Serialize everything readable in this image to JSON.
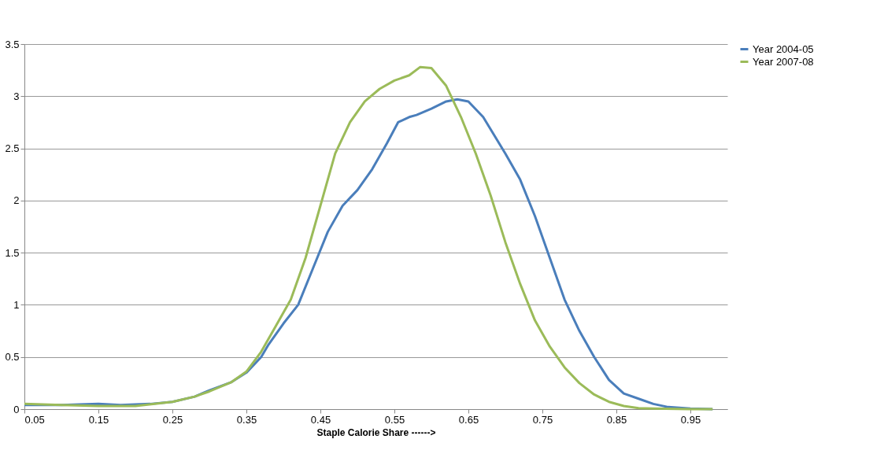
{
  "chart_data": {
    "type": "line",
    "xlabel": "Staple Calorie Share ------>",
    "xlim": [
      0.05,
      1.0
    ],
    "xticks": [
      0.05,
      0.15,
      0.25,
      0.35,
      0.45,
      0.55,
      0.65,
      0.75,
      0.85,
      0.95
    ],
    "ylim": [
      0,
      3.5
    ],
    "yticks": [
      0,
      0.5,
      1,
      1.5,
      2,
      2.5,
      3,
      3.5
    ],
    "grid": "y",
    "legend": "right",
    "marker": "none",
    "line_style": "solid",
    "x": [
      0.05,
      0.1,
      0.15,
      0.18,
      0.22,
      0.25,
      0.28,
      0.3,
      0.33,
      0.35,
      0.37,
      0.38,
      0.4,
      0.42,
      0.44,
      0.46,
      0.48,
      0.5,
      0.52,
      0.54,
      0.555,
      0.57,
      0.58,
      0.6,
      0.62,
      0.635,
      0.65,
      0.67,
      0.7,
      0.72,
      0.74,
      0.76,
      0.78,
      0.8,
      0.82,
      0.84,
      0.86,
      0.88,
      0.9,
      0.92,
      0.95,
      0.98
    ],
    "series": [
      {
        "name": "Year 2004-05",
        "color": "#4a7ebb",
        "values": [
          0.04,
          0.04,
          0.05,
          0.04,
          0.05,
          0.07,
          0.12,
          0.18,
          0.26,
          0.35,
          0.5,
          0.62,
          0.82,
          1.0,
          1.35,
          1.7,
          1.95,
          2.1,
          2.3,
          2.55,
          2.75,
          2.8,
          2.82,
          2.88,
          2.95,
          2.97,
          2.95,
          2.8,
          2.45,
          2.2,
          1.85,
          1.45,
          1.05,
          0.75,
          0.5,
          0.28,
          0.15,
          0.1,
          0.05,
          0.02,
          0.005,
          0
        ]
      },
      {
        "name": "Year 2007-08",
        "color": "#9bbb59",
        "x": [
          0.05,
          0.1,
          0.15,
          0.2,
          0.25,
          0.28,
          0.3,
          0.33,
          0.35,
          0.37,
          0.39,
          0.41,
          0.43,
          0.45,
          0.47,
          0.49,
          0.51,
          0.53,
          0.55,
          0.57,
          0.585,
          0.6,
          0.62,
          0.64,
          0.66,
          0.68,
          0.7,
          0.72,
          0.74,
          0.76,
          0.78,
          0.8,
          0.82,
          0.84,
          0.86,
          0.88,
          0.9,
          0.95,
          0.98
        ],
        "values": [
          0.05,
          0.04,
          0.03,
          0.03,
          0.07,
          0.12,
          0.17,
          0.26,
          0.36,
          0.55,
          0.8,
          1.05,
          1.45,
          1.95,
          2.45,
          2.75,
          2.95,
          3.07,
          3.15,
          3.2,
          3.28,
          3.27,
          3.1,
          2.8,
          2.45,
          2.05,
          1.6,
          1.2,
          0.85,
          0.6,
          0.4,
          0.25,
          0.14,
          0.07,
          0.03,
          0.01,
          0.005,
          0,
          0
        ]
      }
    ]
  }
}
